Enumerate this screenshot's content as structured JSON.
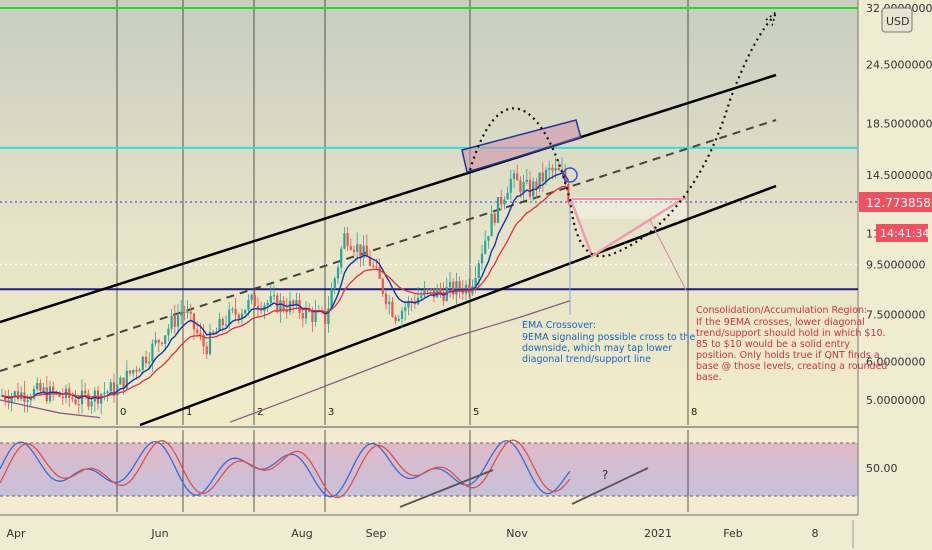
{
  "chart_data": {
    "type": "candlestick",
    "price_axis": {
      "scale": "log",
      "ticks": [
        "32.0000000",
        "24.5000000",
        "18.5000000",
        "14.5000000",
        "9.5000000",
        "7.5000000",
        "6.0000000",
        "5.0000000"
      ],
      "tick_values": [
        32,
        24.5,
        18.5,
        14.5,
        9.5,
        7.5,
        6.0,
        5.0
      ],
      "range": [
        4.4,
        32
      ]
    },
    "current_price": "12.7738583",
    "countdown": "14:41:34",
    "currency_button": "USD",
    "partial_tick": "11",
    "time_axis": {
      "ticks": [
        "Apr",
        "Jun",
        "Aug",
        "Sep",
        "Nov",
        "2021",
        "Feb",
        "8"
      ]
    },
    "wave_labels": [
      "0",
      "1",
      "2",
      "3",
      "5",
      "8"
    ],
    "horizontal_levels": [
      {
        "price": 32.0,
        "color": "#22dd22",
        "style": "solid"
      },
      {
        "price": 16.5,
        "color": "#33dddd",
        "style": "solid"
      },
      {
        "price": 12.77,
        "color": "#6a6acc",
        "style": "dotted"
      },
      {
        "price": 9.5,
        "color": "#ffffff",
        "style": "dotted"
      },
      {
        "price": 8.45,
        "color": "#1c1c90",
        "style": "solid"
      }
    ],
    "annotations": {
      "ema_crossover": {
        "title": "EMA Crossover:",
        "lines": [
          "9EMA signaling possible cross to the",
          "downside, which may tap lower",
          "diagonal trend/support line"
        ]
      },
      "consolidation": {
        "title": "Consolidation/Accumulation Region:",
        "lines": [
          "If the 9EMA crosses, lower diagonal",
          "trend/support should hold in which $10.",
          "85 to $10 would be a solid entry",
          "position. Only holds true if QNT finds a",
          "base @ those levels, creating a rounded",
          "base."
        ]
      },
      "oscillator_question": "?"
    },
    "oscillator": {
      "type": "stochastic_rsi",
      "ticks": [
        "50.00"
      ],
      "levels": [
        80,
        20
      ]
    },
    "colors": {
      "background": "#ecead0",
      "channel": "#000000",
      "ema_fast": "#1a33aa",
      "ema_slow": "#e03040",
      "ema_long": "#8a5a8a",
      "candle_up": "#26a69a",
      "candle_down": "#ef5350",
      "osc_fill": "#bfb0d8",
      "price_label": "#f05060",
      "consolidation_text": "#d03050",
      "crossover_text": "#1a66cc"
    }
  }
}
